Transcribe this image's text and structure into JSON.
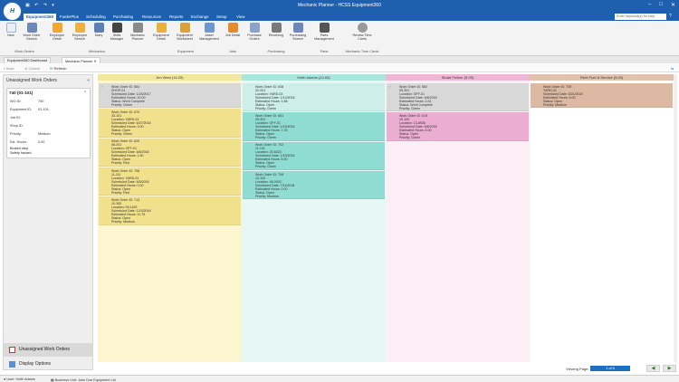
{
  "titlebar": {
    "title": "Mechanic Planner - HCSS Equipment360",
    "logo": "H",
    "qat": "▣ ↶ ↷ ▾"
  },
  "menu": {
    "tabs": [
      "Equipment360",
      "FuelerPlus",
      "Scheduling",
      "Purchasing",
      "Resources",
      "Reports",
      "Exchange",
      "Setup",
      "View"
    ],
    "active": "Equipment360",
    "search_placeholder": "Enter keyword(s) for help"
  },
  "ribbon": {
    "buttons": [
      {
        "label": "New"
      },
      {
        "label": "Work Order Search"
      },
      {
        "label": "Employee Detail"
      },
      {
        "label": "Employee Search"
      },
      {
        "label": "Diary"
      },
      {
        "label": "Skills Manager"
      },
      {
        "label": "Mechanic Planner"
      },
      {
        "label": "Equipment Detail"
      },
      {
        "label": "Equipment Worksheet"
      },
      {
        "label": "Asset Management"
      },
      {
        "label": "Job Detail"
      },
      {
        "label": "Purchase Orders"
      },
      {
        "label": "Receiving"
      },
      {
        "label": "Purchasing Search"
      },
      {
        "label": "Parts Management"
      },
      {
        "label": "Review Time Cards"
      }
    ],
    "groups": [
      "Work Orders",
      "Mechanics",
      "Equipment",
      "Jobs",
      "Purchasing",
      "Parts",
      "Mechanic Time Cards"
    ]
  },
  "doc_tabs": [
    "Equipment360 Dashboard",
    "Mechanic Planner"
  ],
  "toolbar": {
    "save": "Save",
    "cancel": "Cancel",
    "refresh": "Refresh"
  },
  "left_panel": {
    "title": "Unassigned Work Orders",
    "card": {
      "header": "740 (01-101)",
      "fields": [
        {
          "label": "WO ID:",
          "value": "740"
        },
        {
          "label": "Equipment ID:",
          "value": "01-101"
        },
        {
          "label": "Job ID:",
          "value": ""
        },
        {
          "label": "Shop ID:",
          "value": ""
        },
        {
          "label": "Priority:",
          "value": "Medium"
        },
        {
          "label": "Est. Hours:",
          "value": "0.00"
        }
      ],
      "notes": [
        "Broken step",
        "Safety hazard"
      ]
    },
    "nav": [
      "Unassigned Work Orders",
      "Display Options"
    ]
  },
  "columns": [
    {
      "header": "Jim West  (16.25)",
      "bg": "#fbf6cf",
      "head_bg": "#f3e7a0",
      "cards": [
        {
          "lines": [
            "Work Order ID: 564",
            "SHOP-01",
            "Scheduled Date: 1/25/2017",
            "Estimated Hours: 20.00",
            "Status: Work Complete",
            "Priority: Green"
          ],
          "color": "#d8d8d8",
          "check": "✓"
        },
        {
          "lines": [
            "Work Order ID: 670",
            "33-101",
            "Location: YARD-01",
            "Scheduled Date: 6/27/2018",
            "Estimated Hours: 3.00",
            "Status: Open",
            "Priority: Green"
          ],
          "color": "#f1e08c",
          "check": ""
        },
        {
          "lines": [
            "Work Order ID: 629",
            "08-201",
            "Location: OFF-01",
            "Scheduled Date: 6/8/2018",
            "Estimated Hours: 1.50",
            "Status: Open",
            "Priority: Red"
          ],
          "color": "#f1e08c",
          "check": ""
        },
        {
          "lines": [
            "Work Order ID: 708",
            "11-111",
            "Location: YARD-01",
            "Scheduled Date: 6/5/2018",
            "Estimated Hours: 0.00",
            "Status: Open",
            "Priority: Red"
          ],
          "color": "#f1e08c",
          "check": ""
        },
        {
          "lines": [
            "Work Order ID: 713",
            "10-300",
            "Location: 09-1182",
            "Scheduled Date: 12/3/2018",
            "Estimated Hours: 11.75",
            "Status: Open",
            "Priority: Medium"
          ],
          "color": "#f1e08c",
          "check": ""
        }
      ]
    },
    {
      "header": "Keith Adams  (14.63)",
      "bg": "#e7f7f4",
      "head_bg": "#a9e6de",
      "cards": [
        {
          "lines": [
            "Work Order ID: 638",
            "02-001",
            "Location: YARD-03",
            "Scheduled Date: 1/14/2018",
            "Estimated Hours: 1.88",
            "Status: Open",
            "Priority: Green"
          ],
          "color": "#cdeee9",
          "check": ""
        },
        {
          "lines": [
            "Work Order ID: 651",
            "09-301",
            "Location: OFF-01",
            "Scheduled Date: 1/15/2018",
            "Estimated Hours: 7.25",
            "Status: Open",
            "Priority: Green"
          ],
          "color": "#8fddd2",
          "check": ""
        },
        {
          "lines": [
            "Work Order ID: 702",
            "11-101",
            "Location: 20-6024",
            "Scheduled Date: 1/15/2018",
            "Estimated Hours: 5.50",
            "Status: Open",
            "Priority: Green"
          ],
          "color": "#8fddd2",
          "check": ""
        },
        {
          "lines": [
            "Work Order ID: 708",
            "12-100",
            "Location: 46-0002",
            "Scheduled Date: 7/11/2018",
            "Estimated Hours: 0.00",
            "Status: Open",
            "Priority: Medium"
          ],
          "color": "#8fddd2",
          "check": ""
        }
      ]
    },
    {
      "header": "Stuart Fellner  (5.00)",
      "bg": "#fbeef5",
      "head_bg": "#f0b6d6",
      "cards": [
        {
          "lines": [
            "Work Order ID: 582",
            "05-301",
            "Location: OFF-01",
            "Scheduled Date: 6/8/2018",
            "Estimated Hours: 2.51",
            "Status: Work Complete",
            "Priority: Green"
          ],
          "color": "#d8d8d8",
          "check": "✓"
        },
        {
          "lines": [
            "Work Order ID: 615",
            "10-100",
            "Location: 13-8936",
            "Scheduled Date: 6/8/2018",
            "Estimated Hours: 5.00",
            "Status: Open",
            "Priority: Green"
          ],
          "color": "#ebadd1",
          "check": ""
        }
      ]
    },
    {
      "header": "Fleet Fuel & Service  (5.00)",
      "bg": "#ffffff",
      "head_bg": "#e2c2ae",
      "cards": [
        {
          "lines": [
            "Work Order ID: 739",
            "YARD-01",
            "Scheduled Date: 6/21/2018",
            "Estimated Hours: 5.00",
            "Status: Open",
            "Priority: Medium"
          ],
          "color": "#dcb9a3",
          "check": ""
        }
      ]
    }
  ],
  "footer": {
    "viewing_label": "Viewing Page:",
    "page": "1 of 6",
    "prev": "◀",
    "next": "▶"
  },
  "statusbar": {
    "user": "User: Keith Adams",
    "business_unit": "Business Unit: John Doe Equipment Ltd"
  }
}
